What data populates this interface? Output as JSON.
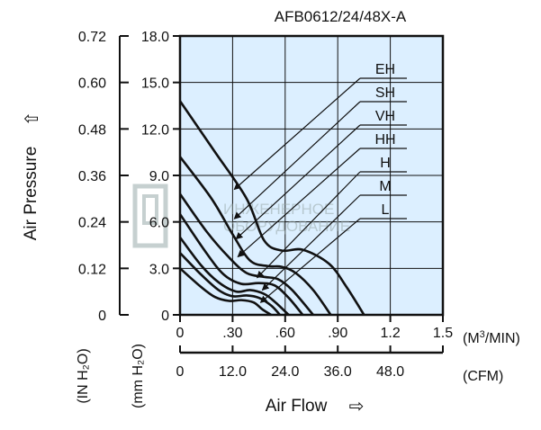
{
  "chart_data": {
    "type": "line",
    "title": "AFB0612/24/48X-A",
    "ylabel": "Air Pressure",
    "ylabel_arrow": "⇧",
    "xlabel": "Air Flow",
    "xlabel_arrow": "⇨",
    "y_left_ticks": [
      "0.72",
      "0.60",
      "0.48",
      "0.36",
      "0.24",
      "0.12",
      "0"
    ],
    "y_left_unit": "(IN H₂O)",
    "y_right_ticks": [
      "18.0",
      "15.0",
      "12.0",
      "9.0",
      "6.0",
      "3.0",
      "0"
    ],
    "y_right_unit": "(mm H₂O)",
    "ylim": [
      0,
      18
    ],
    "x_top_ticks": [
      "0",
      ".30",
      ".60",
      ".90",
      "1.2",
      "1.5"
    ],
    "x_top_unit_prefix": "(M",
    "x_top_unit_sup": "3",
    "x_top_unit_suffix": "/MIN)",
    "x_bottom_ticks": [
      "0",
      "12.0",
      "24.0",
      "36.0",
      "48.0"
    ],
    "x_bottom_unit": "(CFM)",
    "xlim": [
      0,
      1.5
    ],
    "grid": true,
    "series": [
      {
        "name": "EH",
        "points": [
          [
            0,
            13.8
          ],
          [
            0.2,
            10.5
          ],
          [
            0.38,
            7.5
          ],
          [
            0.48,
            4.8
          ],
          [
            0.58,
            4.15
          ],
          [
            0.7,
            4.2
          ],
          [
            0.85,
            3.3
          ],
          [
            0.95,
            1.8
          ],
          [
            1.05,
            0
          ]
        ],
        "arrow_at": [
          0.31,
          8.1
        ]
      },
      {
        "name": "SH",
        "points": [
          [
            0,
            10.2
          ],
          [
            0.18,
            7.5
          ],
          [
            0.3,
            5.2
          ],
          [
            0.4,
            3.5
          ],
          [
            0.5,
            3.15
          ],
          [
            0.58,
            3.1
          ],
          [
            0.66,
            2.7
          ],
          [
            0.76,
            1.6
          ],
          [
            0.86,
            0
          ]
        ],
        "arrow_at": [
          0.31,
          6.2
        ]
      },
      {
        "name": "VH",
        "points": [
          [
            0,
            7.8
          ],
          [
            0.15,
            5.4
          ],
          [
            0.28,
            3.7
          ],
          [
            0.38,
            2.7
          ],
          [
            0.48,
            2.45
          ],
          [
            0.56,
            2.3
          ],
          [
            0.64,
            1.6
          ],
          [
            0.76,
            0
          ]
        ],
        "arrow_at": [
          0.32,
          4.9
        ]
      },
      {
        "name": "HH",
        "points": [
          [
            0,
            6.5
          ],
          [
            0.15,
            4.0
          ],
          [
            0.25,
            2.6
          ],
          [
            0.35,
            2.0
          ],
          [
            0.45,
            2.05
          ],
          [
            0.54,
            1.9
          ],
          [
            0.62,
            1.1
          ],
          [
            0.7,
            0
          ]
        ],
        "arrow_at": [
          0.33,
          3.75
        ]
      },
      {
        "name": "H",
        "points": [
          [
            0,
            5.0
          ],
          [
            0.12,
            3.2
          ],
          [
            0.22,
            2.1
          ],
          [
            0.32,
            1.5
          ],
          [
            0.4,
            1.6
          ],
          [
            0.48,
            1.35
          ],
          [
            0.54,
            0.85
          ],
          [
            0.62,
            0
          ]
        ],
        "arrow_at": [
          0.44,
          2.4
        ]
      },
      {
        "name": "M",
        "points": [
          [
            0,
            4.0
          ],
          [
            0.12,
            2.6
          ],
          [
            0.22,
            1.6
          ],
          [
            0.3,
            1.2
          ],
          [
            0.38,
            1.25
          ],
          [
            0.45,
            1.1
          ],
          [
            0.52,
            0.6
          ],
          [
            0.57,
            0
          ]
        ],
        "arrow_at": [
          0.47,
          1.6
        ]
      },
      {
        "name": "L",
        "points": [
          [
            0,
            3.0
          ],
          [
            0.12,
            1.8
          ],
          [
            0.2,
            1.15
          ],
          [
            0.28,
            0.9
          ],
          [
            0.35,
            0.95
          ],
          [
            0.42,
            0.8
          ],
          [
            0.47,
            0.35
          ],
          [
            0.52,
            0
          ]
        ],
        "arrow_at": [
          0.46,
          0.8
        ]
      }
    ]
  },
  "watermark": {
    "line1": "ИНЖЕНЕРНОЕ",
    "line2": "ОБОРУДОВАНИЕ"
  }
}
